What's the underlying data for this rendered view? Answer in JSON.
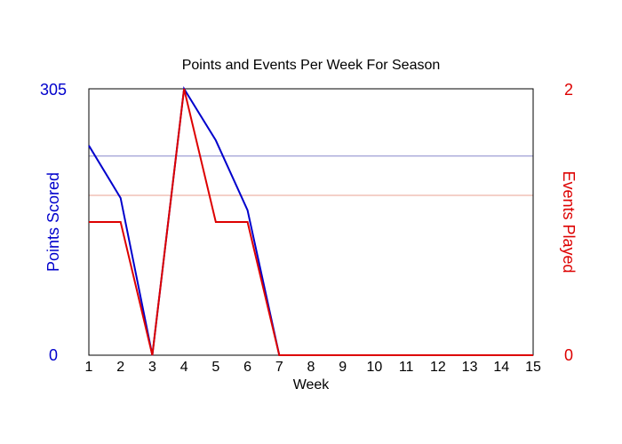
{
  "chart_data": {
    "type": "line",
    "title": "Points and Events Per Week For Season",
    "xlabel": "Week",
    "ylabel_left": "Points Scored",
    "ylabel_right": "Events Played",
    "x": [
      1,
      2,
      3,
      4,
      5,
      6,
      7,
      8,
      9,
      10,
      11,
      12,
      13,
      14,
      15
    ],
    "xlim": [
      1,
      15
    ],
    "ylim_left": [
      0,
      305
    ],
    "ylim_right": [
      0,
      2
    ],
    "left_tick_labels": [
      "0",
      "305"
    ],
    "right_tick_labels": [
      "0",
      "2"
    ],
    "series": [
      {
        "name": "Points Scored",
        "axis": "left",
        "color": "#0000cc",
        "values": [
          240,
          180,
          0,
          305,
          246,
          166,
          0,
          0,
          0,
          0,
          0,
          0,
          0,
          0,
          0
        ],
        "average": 228
      },
      {
        "name": "Events Played",
        "axis": "right",
        "color": "#dd0000",
        "values": [
          1,
          1,
          0,
          2,
          1,
          1,
          0,
          0,
          0,
          0,
          0,
          0,
          0,
          0,
          0
        ],
        "average": 1.2
      }
    ],
    "reference_line_colors": {
      "left": "#8888cc",
      "right": "#e8a090"
    },
    "grid": false,
    "legend": "none"
  }
}
